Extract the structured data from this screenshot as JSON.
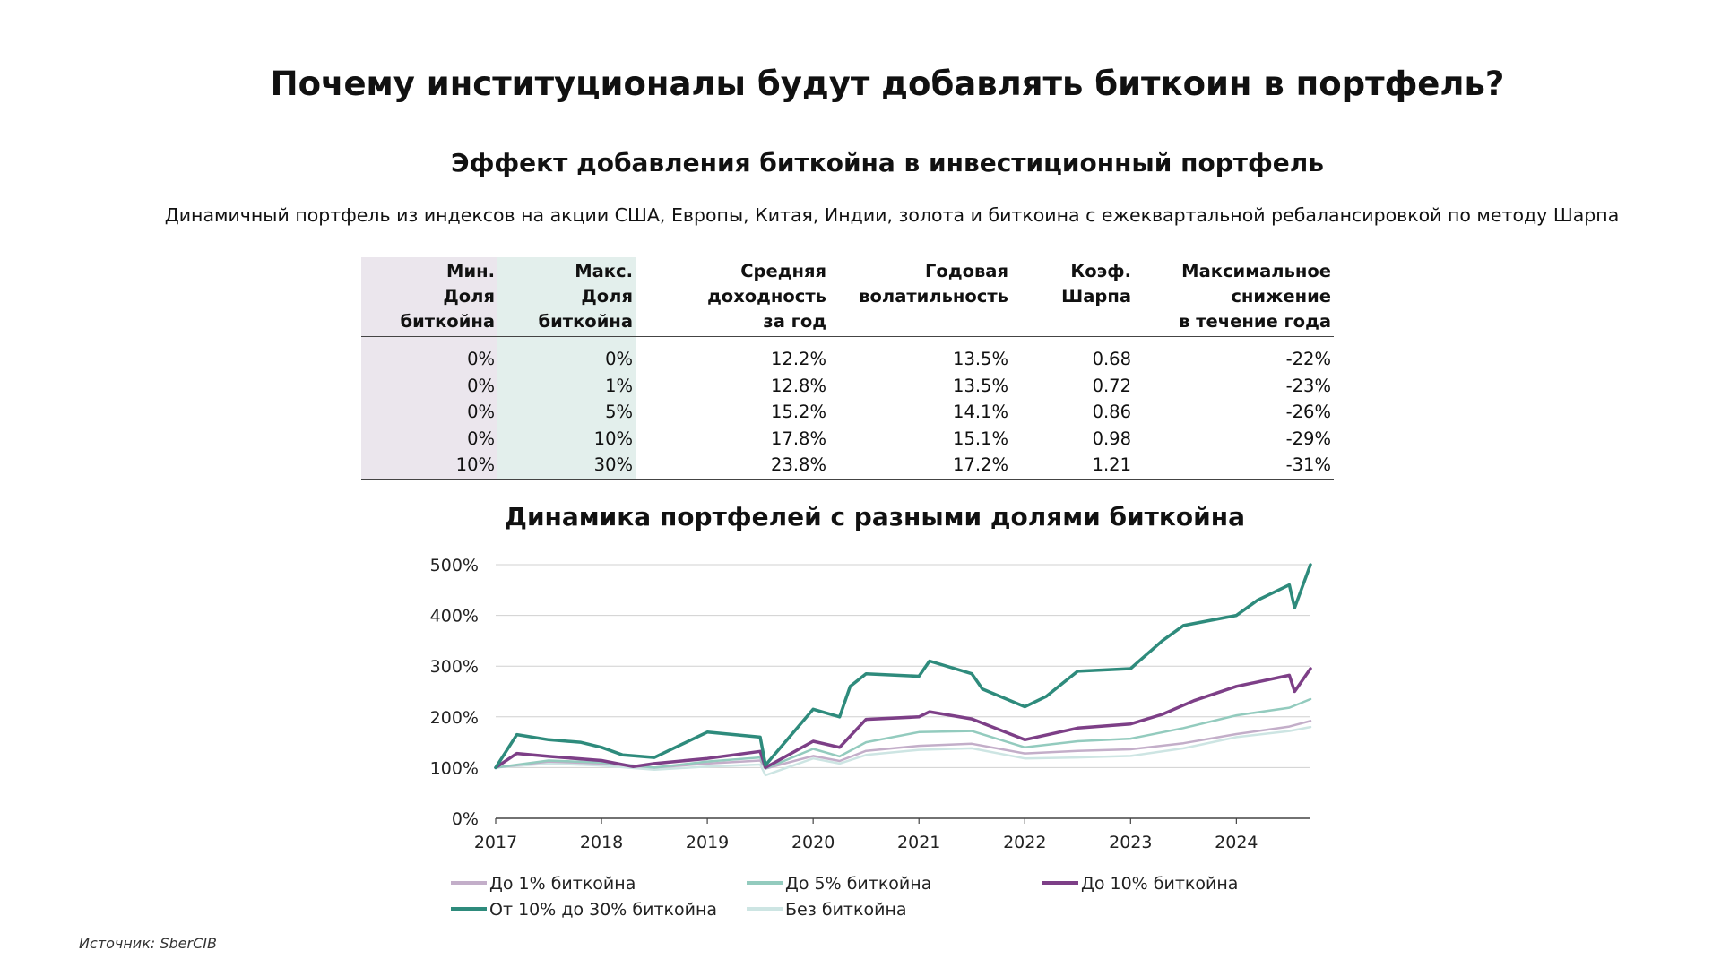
{
  "page": {
    "title": "Почему институционалы будут добавлять биткоин в портфель?",
    "subtitle": "Эффект добавления биткойна в инвестиционный портфель",
    "description": "Динамичный портфель из индексов на акции США, Европы, Китая, Индии, золота и биткоина с ежеквартальной ребалансировкой по методу Шарпа",
    "source": "Источник: SberCIB"
  },
  "table": {
    "headers": [
      [
        "Мин.",
        "Доля",
        "биткойна"
      ],
      [
        "Макс.",
        "Доля",
        "биткойна"
      ],
      [
        "Средняя",
        "доходность",
        "за год"
      ],
      [
        "Годовая",
        "волатильность"
      ],
      [
        "Коэф.",
        "Шарпа"
      ],
      [
        "Максимальное",
        "снижение",
        "в течение года"
      ]
    ],
    "rows": [
      [
        "0%",
        "0%",
        "12.2%",
        "13.5%",
        "0.68",
        "-22%"
      ],
      [
        "0%",
        "1%",
        "12.8%",
        "13.5%",
        "0.72",
        "-23%"
      ],
      [
        "0%",
        "5%",
        "15.2%",
        "14.1%",
        "0.86",
        "-26%"
      ],
      [
        "0%",
        "10%",
        "17.8%",
        "15.1%",
        "0.98",
        "-29%"
      ],
      [
        "10%",
        "30%",
        "23.8%",
        "17.2%",
        "1.21",
        "-31%"
      ]
    ],
    "colors": {
      "min_col_bg": "#ebe6ed",
      "max_col_bg": "#e3efec"
    }
  },
  "chart_data": {
    "type": "line",
    "title": "Динамика портфелей с разными долями биткойна",
    "xlabel": "",
    "ylabel": "",
    "xlim": [
      2017.0,
      2024.7
    ],
    "ylim": [
      0,
      500
    ],
    "x_ticks": [
      "2017",
      "2018",
      "2019",
      "2020",
      "2021",
      "2022",
      "2023",
      "2024"
    ],
    "y_ticks": [
      "0%",
      "100%",
      "200%",
      "300%",
      "400%",
      "500%"
    ],
    "grid": "horizontal",
    "legend_position": "bottom",
    "series": [
      {
        "name": "До 1% биткойна",
        "color": "#c3aec9",
        "width": 2.5,
        "x": [
          2017.0,
          2017.5,
          2018.0,
          2018.5,
          2019.0,
          2019.5,
          2019.55,
          2020.0,
          2020.25,
          2020.5,
          2021.0,
          2021.5,
          2022.0,
          2022.5,
          2023.0,
          2023.5,
          2024.0,
          2024.5,
          2024.7
        ],
        "y": [
          100,
          112,
          108,
          100,
          108,
          114,
          98,
          123,
          113,
          133,
          143,
          147,
          128,
          133,
          136,
          148,
          166,
          181,
          192
        ]
      },
      {
        "name": "До 5% биткойна",
        "color": "#93cbbe",
        "width": 2.5,
        "x": [
          2017.0,
          2017.5,
          2018.0,
          2018.5,
          2019.0,
          2019.5,
          2019.55,
          2020.0,
          2020.25,
          2020.5,
          2021.0,
          2021.5,
          2022.0,
          2022.5,
          2023.0,
          2023.5,
          2024.0,
          2024.5,
          2024.7
        ],
        "y": [
          100,
          114,
          110,
          100,
          112,
          120,
          98,
          137,
          122,
          150,
          170,
          172,
          140,
          152,
          157,
          178,
          203,
          218,
          235
        ]
      },
      {
        "name": "До 10% биткойна",
        "color": "#7d3f87",
        "width": 3.5,
        "x": [
          2017.0,
          2017.2,
          2017.5,
          2018.0,
          2018.3,
          2018.5,
          2019.0,
          2019.5,
          2019.55,
          2020.0,
          2020.25,
          2020.5,
          2021.0,
          2021.1,
          2021.5,
          2022.0,
          2022.5,
          2023.0,
          2023.3,
          2023.6,
          2024.0,
          2024.5,
          2024.55,
          2024.7
        ],
        "y": [
          100,
          128,
          122,
          114,
          102,
          108,
          118,
          132,
          100,
          152,
          140,
          195,
          200,
          210,
          196,
          155,
          178,
          186,
          205,
          232,
          260,
          282,
          250,
          295
        ]
      },
      {
        "name": "От 10% до 30% биткойна",
        "color": "#2e8b7c",
        "width": 3.5,
        "x": [
          2017.0,
          2017.2,
          2017.5,
          2017.8,
          2018.0,
          2018.2,
          2018.5,
          2019.0,
          2019.5,
          2019.55,
          2020.0,
          2020.25,
          2020.35,
          2020.5,
          2021.0,
          2021.1,
          2021.5,
          2021.6,
          2022.0,
          2022.2,
          2022.5,
          2023.0,
          2023.3,
          2023.5,
          2024.0,
          2024.2,
          2024.5,
          2024.55,
          2024.7
        ],
        "y": [
          100,
          165,
          155,
          150,
          140,
          125,
          120,
          170,
          160,
          105,
          215,
          200,
          260,
          285,
          280,
          310,
          285,
          255,
          220,
          240,
          290,
          295,
          350,
          380,
          400,
          430,
          460,
          415,
          500
        ]
      },
      {
        "name": "Без биткойна",
        "color": "#cde5e3",
        "width": 2.5,
        "x": [
          2017.0,
          2017.5,
          2018.0,
          2018.5,
          2019.0,
          2019.5,
          2019.55,
          2020.0,
          2020.25,
          2020.5,
          2021.0,
          2021.5,
          2022.0,
          2022.5,
          2023.0,
          2023.5,
          2024.0,
          2024.5,
          2024.7
        ],
        "y": [
          100,
          108,
          104,
          96,
          102,
          106,
          85,
          118,
          108,
          125,
          135,
          138,
          118,
          120,
          123,
          138,
          160,
          172,
          180
        ]
      }
    ]
  }
}
